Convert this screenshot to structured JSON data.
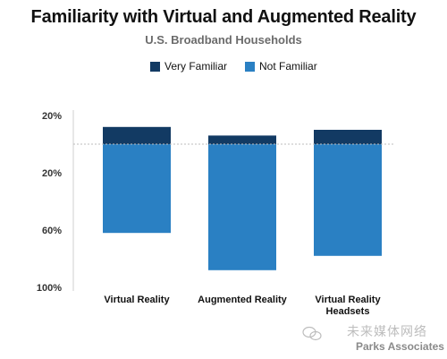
{
  "chart_data": {
    "type": "bar",
    "title": "Familiarity with Virtual and Augmented Reality",
    "subtitle": "U.S. Broadband Households",
    "categories": [
      "Virtual Reality",
      "Augmented Reality",
      "Virtual Reality Headsets"
    ],
    "category_display": [
      [
        "Virtual Reality"
      ],
      [
        "Augmented Reality"
      ],
      [
        "Virtual Reality",
        "Headsets"
      ]
    ],
    "series": [
      {
        "name": "Very Familiar",
        "color": "#123a63",
        "values": [
          12,
          6,
          10
        ]
      },
      {
        "name": "Not Familiar",
        "color": "#2a80c3",
        "values": [
          62,
          88,
          78
        ]
      }
    ],
    "stacking": "diverging",
    "ylim": [
      -20,
      100
    ],
    "y_ticks": [
      {
        "value": -20,
        "label": "20%"
      },
      {
        "value": 20,
        "label": "20%"
      },
      {
        "value": 60,
        "label": "60%"
      },
      {
        "value": 100,
        "label": "100%"
      }
    ],
    "zero_line": "dotted",
    "legend_position": "top",
    "grid": false
  },
  "watermark": {
    "chinese_text": "未来媒体网络",
    "brand": "Parks Associates",
    "logo_icon": "wechat-icon"
  }
}
